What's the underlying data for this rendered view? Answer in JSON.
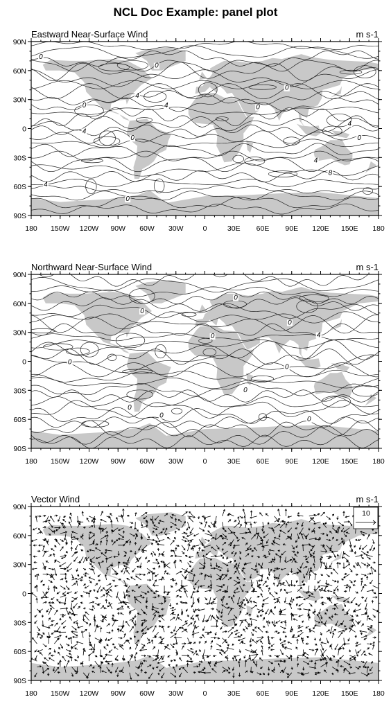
{
  "title": "NCL Doc Example: panel plot",
  "colors": {
    "land": "#c8c8c8",
    "lines": "#222222",
    "background": "#ffffff"
  },
  "chart_data": [
    {
      "type": "contour-map",
      "title": "Eastward Near-Surface Wind",
      "units": "m s-1",
      "xlim": [
        -180,
        180
      ],
      "ylim": [
        -90,
        90
      ],
      "x_ticks": [
        "180",
        "150W",
        "120W",
        "90W",
        "60W",
        "30W",
        "0",
        "30E",
        "60E",
        "90E",
        "120E",
        "150E",
        "180"
      ],
      "y_ticks": [
        "90N",
        "60N",
        "30N",
        "0",
        "30S",
        "60S",
        "90S"
      ],
      "contour_labels": [
        {
          "text": "0",
          "lon": -170,
          "lat": 72
        },
        {
          "text": "0",
          "lon": -50,
          "lat": 63
        },
        {
          "text": "4",
          "lon": -70,
          "lat": 32
        },
        {
          "text": "4",
          "lon": -40,
          "lat": 22
        },
        {
          "text": "0",
          "lon": -125,
          "lat": 22
        },
        {
          "text": "0",
          "lon": 55,
          "lat": 20
        },
        {
          "text": "0",
          "lon": 85,
          "lat": 40
        },
        {
          "text": "4",
          "lon": -125,
          "lat": -5
        },
        {
          "text": "0",
          "lon": -75,
          "lat": -12
        },
        {
          "text": "4",
          "lon": 150,
          "lat": 3
        },
        {
          "text": "0",
          "lon": 160,
          "lat": -12
        },
        {
          "text": "4",
          "lon": 115,
          "lat": -35
        },
        {
          "text": "8",
          "lon": 130,
          "lat": -48
        },
        {
          "text": "4",
          "lon": -165,
          "lat": -60
        },
        {
          "text": "0",
          "lon": -80,
          "lat": -75
        }
      ]
    },
    {
      "type": "contour-map",
      "title": "Northward Near-Surface Wind",
      "units": "m s-1",
      "xlim": [
        -180,
        180
      ],
      "ylim": [
        -90,
        90
      ],
      "x_ticks": [
        "180",
        "150W",
        "120W",
        "90W",
        "60W",
        "30W",
        "0",
        "30E",
        "60E",
        "90E",
        "120E",
        "150E",
        "180"
      ],
      "y_ticks": [
        "90N",
        "60N",
        "30N",
        "0",
        "30S",
        "60S",
        "90S"
      ],
      "contour_labels": [
        {
          "text": "0",
          "lon": 32,
          "lat": 64
        },
        {
          "text": "0",
          "lon": -65,
          "lat": 50
        },
        {
          "text": "0",
          "lon": 88,
          "lat": 38
        },
        {
          "text": "0",
          "lon": 8,
          "lat": 24
        },
        {
          "text": "4",
          "lon": 118,
          "lat": 25
        },
        {
          "text": "0",
          "lon": -140,
          "lat": -3
        },
        {
          "text": "0",
          "lon": 85,
          "lat": -8
        },
        {
          "text": "0",
          "lon": 42,
          "lat": -32
        },
        {
          "text": "0",
          "lon": -78,
          "lat": -50
        },
        {
          "text": "0",
          "lon": -45,
          "lat": -58
        },
        {
          "text": "0",
          "lon": 108,
          "lat": -62
        }
      ]
    },
    {
      "type": "vector-map",
      "title": "Vector Wind",
      "units": "m s-1",
      "reference_vector": "10",
      "xlim": [
        -180,
        180
      ],
      "ylim": [
        -90,
        90
      ],
      "x_ticks": [
        "180",
        "150W",
        "120W",
        "90W",
        "60W",
        "30W",
        "0",
        "30E",
        "60E",
        "90E",
        "120E",
        "150E",
        "180"
      ],
      "y_ticks": [
        "90N",
        "60N",
        "30N",
        "0",
        "30S",
        "60S",
        "90S"
      ]
    }
  ]
}
